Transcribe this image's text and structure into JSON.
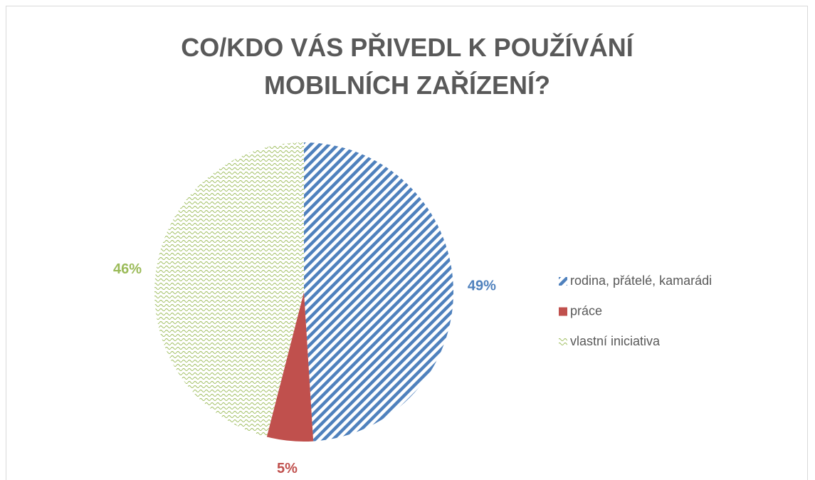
{
  "chart_data": {
    "type": "pie",
    "title": "CO/KDO VÁS PŘIVEDL K POUŽÍVÁNÍ MOBILNÍCH ZAŘÍZENÍ?",
    "categories": [
      "rodina, přátelé,  kamarádi",
      "práce",
      "vlastní iniciativa"
    ],
    "values": [
      49,
      5,
      46
    ],
    "value_labels": [
      "49%",
      "5%",
      "46%"
    ],
    "colors": [
      "#4f81bd",
      "#c0504d",
      "#9bbb59"
    ],
    "legend": "right"
  }
}
